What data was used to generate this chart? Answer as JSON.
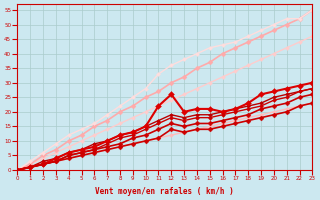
{
  "xlabel": "Vent moyen/en rafales ( km/h )",
  "background_color": "#cce8f0",
  "grid_color": "#aacccc",
  "xlim": [
    0,
    23
  ],
  "ylim": [
    0,
    57
  ],
  "yticks": [
    0,
    5,
    10,
    15,
    20,
    25,
    30,
    35,
    40,
    45,
    50,
    55
  ],
  "xticks": [
    0,
    1,
    2,
    3,
    4,
    5,
    6,
    7,
    8,
    9,
    10,
    11,
    12,
    13,
    14,
    15,
    16,
    17,
    18,
    19,
    20,
    21,
    22,
    23
  ],
  "lines": [
    {
      "x": [
        0,
        1,
        2,
        3,
        4,
        5,
        6,
        7,
        8,
        9,
        10,
        11,
        12,
        13,
        14,
        15,
        16,
        17,
        18,
        19,
        20,
        21,
        22,
        23
      ],
      "y": [
        0,
        1,
        2,
        3,
        4,
        5,
        6,
        7,
        8,
        9,
        10,
        11,
        12,
        13,
        14,
        15,
        16,
        17,
        18,
        19,
        20,
        21,
        22,
        23
      ],
      "color": "#ffbbbb",
      "lw": 1.0,
      "ms": 2.0
    },
    {
      "x": [
        0,
        1,
        2,
        3,
        4,
        5,
        6,
        7,
        8,
        9,
        10,
        11,
        12,
        13,
        14,
        15,
        16,
        17,
        18,
        19,
        20,
        21,
        22,
        23
      ],
      "y": [
        0,
        2,
        4,
        6,
        8,
        10,
        12,
        14,
        16,
        18,
        20,
        22,
        24,
        26,
        28,
        30,
        32,
        34,
        36,
        38,
        40,
        42,
        44,
        46
      ],
      "color": "#ffcccc",
      "lw": 1.0,
      "ms": 2.0
    },
    {
      "x": [
        0,
        1,
        2,
        3,
        4,
        5,
        6,
        7,
        8,
        9,
        10,
        11,
        12,
        13,
        14,
        15,
        16,
        17,
        18,
        19,
        20,
        21,
        22,
        23
      ],
      "y": [
        0,
        2,
        5,
        7,
        10,
        12,
        15,
        17,
        20,
        22,
        25,
        27,
        30,
        32,
        35,
        37,
        40,
        42,
        44,
        46,
        48,
        50,
        52,
        55
      ],
      "color": "#ffaaaa",
      "lw": 1.2,
      "ms": 2.5
    },
    {
      "x": [
        0,
        1,
        2,
        3,
        4,
        5,
        6,
        7,
        8,
        9,
        10,
        11,
        12,
        13,
        14,
        15,
        16,
        17,
        18,
        19,
        20,
        21,
        22,
        23
      ],
      "y": [
        0,
        3,
        6,
        9,
        12,
        14,
        16,
        19,
        22,
        25,
        28,
        33,
        36,
        38,
        40,
        42,
        43,
        44,
        46,
        48,
        50,
        52,
        52,
        55
      ],
      "color": "#ffdddd",
      "lw": 1.0,
      "ms": 2.0
    },
    {
      "x": [
        0,
        1,
        2,
        3,
        4,
        5,
        6,
        7,
        8,
        9,
        10,
        11,
        12,
        13,
        14,
        15,
        16,
        17,
        18,
        19,
        20,
        21,
        22,
        23
      ],
      "y": [
        0,
        1,
        2,
        3,
        4,
        5,
        6,
        7,
        8,
        9,
        10,
        11,
        14,
        13,
        14,
        14,
        15,
        16,
        17,
        18,
        19,
        20,
        22,
        23
      ],
      "color": "#cc0000",
      "lw": 1.2,
      "ms": 2.5
    },
    {
      "x": [
        0,
        1,
        2,
        3,
        4,
        5,
        6,
        7,
        8,
        9,
        10,
        11,
        12,
        13,
        14,
        15,
        16,
        17,
        18,
        19,
        20,
        21,
        22,
        23
      ],
      "y": [
        0,
        1,
        2,
        3,
        5,
        6,
        7,
        8,
        9,
        11,
        12,
        14,
        16,
        15,
        16,
        16,
        17,
        18,
        19,
        21,
        22,
        23,
        25,
        26
      ],
      "color": "#cc0000",
      "lw": 1.2,
      "ms": 2.5
    },
    {
      "x": [
        0,
        1,
        2,
        3,
        4,
        5,
        6,
        7,
        8,
        9,
        10,
        11,
        12,
        13,
        14,
        15,
        16,
        17,
        18,
        19,
        20,
        21,
        22,
        23
      ],
      "y": [
        0,
        1,
        3,
        4,
        6,
        7,
        9,
        10,
        12,
        13,
        15,
        17,
        19,
        18,
        19,
        19,
        20,
        21,
        22,
        23,
        25,
        26,
        27,
        28
      ],
      "color": "#bb0000",
      "lw": 1.0,
      "ms": 2.0
    },
    {
      "x": [
        0,
        1,
        2,
        3,
        4,
        5,
        6,
        7,
        8,
        9,
        10,
        11,
        12,
        13,
        14,
        15,
        16,
        17,
        18,
        19,
        20,
        21,
        22,
        23
      ],
      "y": [
        0,
        1,
        2,
        4,
        6,
        7,
        8,
        10,
        12,
        13,
        15,
        22,
        26,
        20,
        21,
        21,
        20,
        21,
        23,
        26,
        27,
        28,
        29,
        30
      ],
      "color": "#dd0000",
      "lw": 1.5,
      "ms": 3.0
    },
    {
      "x": [
        0,
        1,
        2,
        3,
        4,
        5,
        6,
        7,
        8,
        9,
        10,
        11,
        12,
        13,
        14,
        15,
        16,
        17,
        18,
        19,
        20,
        21,
        22,
        23
      ],
      "y": [
        0,
        1,
        2,
        3,
        5,
        6,
        7,
        9,
        11,
        12,
        14,
        16,
        18,
        17,
        18,
        18,
        19,
        20,
        21,
        22,
        24,
        25,
        27,
        28
      ],
      "color": "#cc0000",
      "lw": 1.0,
      "ms": 2.0
    }
  ]
}
